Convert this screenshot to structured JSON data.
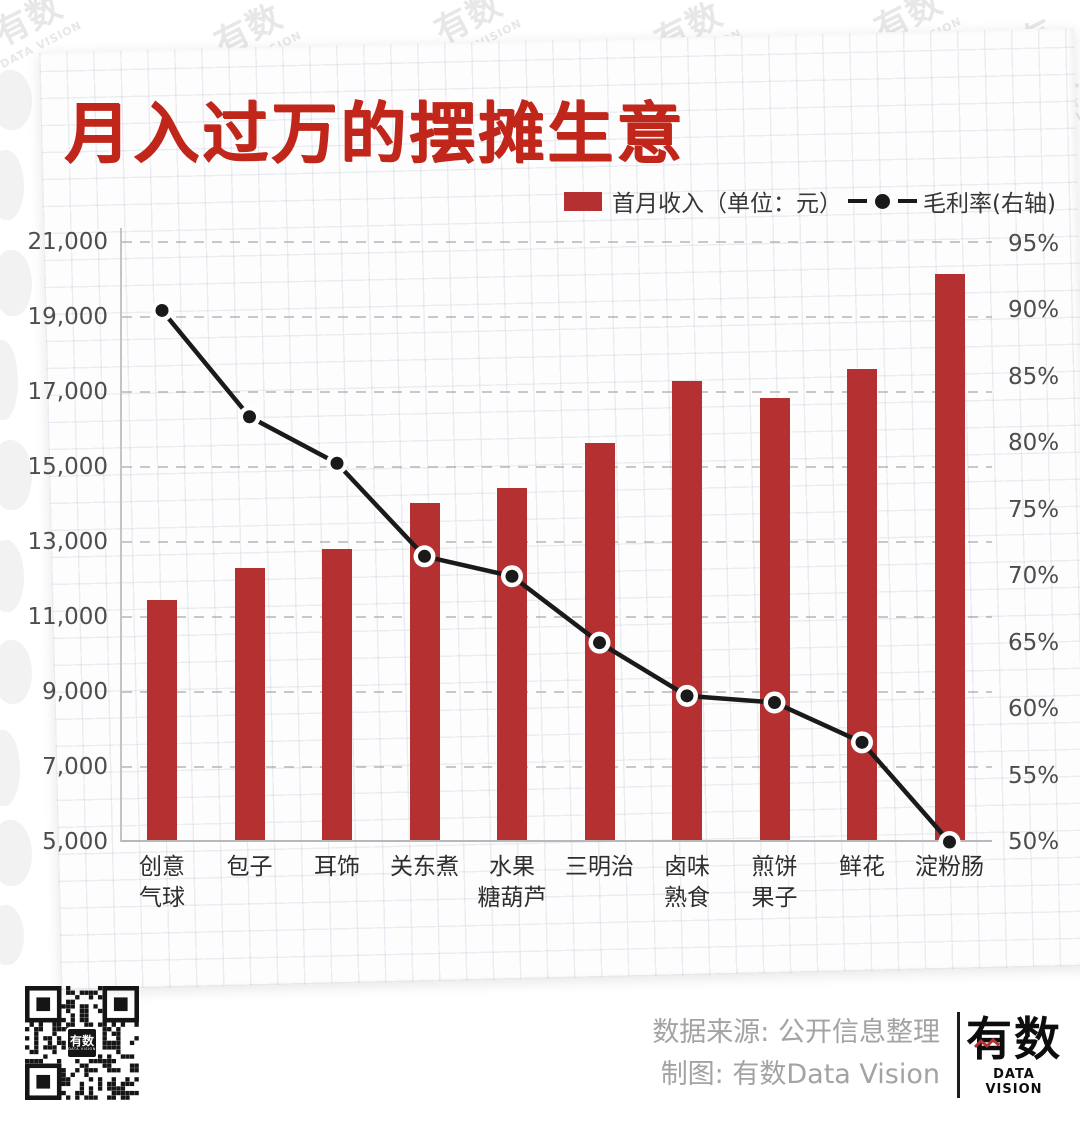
{
  "watermark": {
    "logo_text": "有数",
    "subtext": "DATA VISION"
  },
  "title": "月入过万的摆摊生意",
  "legend": {
    "bar_label": "首月收入（单位：元）",
    "line_label": "毛利率(右轴)"
  },
  "chart_data": {
    "type": "bar+line combo",
    "title": "月入过万的摆摊生意",
    "categories": [
      "创意气球",
      "包子",
      "耳饰",
      "关东煮",
      "水果糖葫芦",
      "三明治",
      "卤味熟食",
      "煎饼果子",
      "鲜花",
      "淀粉肠"
    ],
    "category_label_lines": [
      [
        "创意",
        "气球"
      ],
      [
        "包子"
      ],
      [
        "耳饰"
      ],
      [
        "关东煮"
      ],
      [
        "水果",
        "糖葫芦"
      ],
      [
        "三明治"
      ],
      [
        "卤味",
        "熟食"
      ],
      [
        "煎饼",
        "果子"
      ],
      [
        "鲜花"
      ],
      [
        "淀粉肠"
      ]
    ],
    "series": [
      {
        "name": "首月收入",
        "type": "bar",
        "axis": "left",
        "unit": "元",
        "values": [
          11400,
          12250,
          12750,
          14000,
          14400,
          15600,
          17250,
          16800,
          17550,
          20100
        ]
      },
      {
        "name": "毛利率",
        "type": "line",
        "axis": "right",
        "unit": "%",
        "values": [
          90,
          82,
          78.5,
          71.5,
          70,
          65,
          61,
          60.5,
          57.5,
          50
        ]
      }
    ],
    "left_axis": {
      "min": 5000,
      "max": 21000,
      "step": 2000,
      "tick_values": [
        21000,
        19000,
        17000,
        15000,
        13000,
        11000,
        9000,
        7000,
        5000
      ],
      "tick_labels": [
        "21,000",
        "19,000",
        "17,000",
        "15,000",
        "13,000",
        "11,000",
        "9,000",
        "7,000",
        "5,000"
      ]
    },
    "right_axis": {
      "min": 50,
      "max": 95,
      "step": 5,
      "tick_values": [
        95,
        90,
        85,
        80,
        75,
        70,
        65,
        60,
        55,
        50
      ],
      "tick_labels": [
        "95%",
        "90%",
        "85%",
        "80%",
        "75%",
        "70%",
        "65%",
        "60%",
        "55%",
        "50%"
      ]
    },
    "grid": true,
    "legend_position": "top-right",
    "colors": {
      "bar": "#b53030",
      "line": "#1a1a1a",
      "title": "#c1261b"
    }
  },
  "footer": {
    "source_line": "数据来源: 公开信息整理",
    "credit_line": "制图: 有数Data Vision",
    "logo_text": "有数",
    "logo_subtext": "DATA VISION",
    "qr_label": "有数",
    "qr_sublabel": "DATA VISION"
  }
}
